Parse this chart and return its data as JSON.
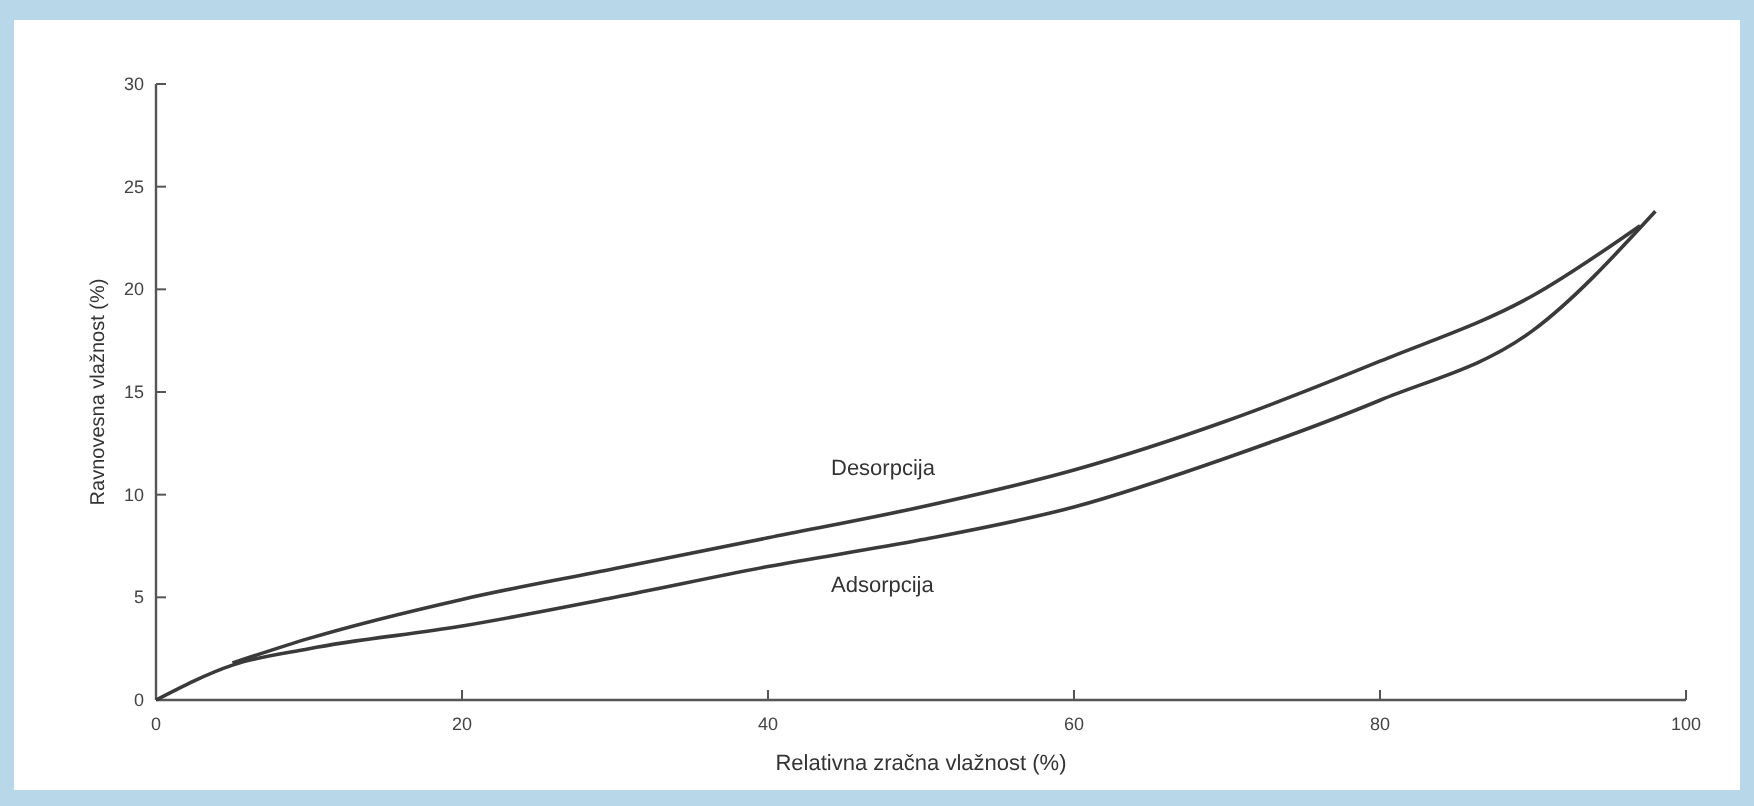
{
  "chart_data": {
    "type": "line",
    "xlabel": "Relativna zračna vlažnost (%)",
    "ylabel": "Ravnovesna vlažnost (%)",
    "xlim": [
      0,
      100
    ],
    "ylim": [
      0,
      30
    ],
    "xticks": [
      0,
      20,
      40,
      60,
      80,
      100
    ],
    "yticks": [
      0,
      5,
      10,
      15,
      20,
      25,
      30
    ],
    "grid": false,
    "marker": "none",
    "line_style": "solid",
    "series": [
      {
        "name": "Desorpcija",
        "color": "#3a3a3a",
        "x": [
          5,
          10,
          20,
          30,
          40,
          50,
          60,
          70,
          80,
          90,
          97
        ],
        "values": [
          1.8,
          3.0,
          4.9,
          6.4,
          7.9,
          9.4,
          11.2,
          13.6,
          16.5,
          19.7,
          23.1
        ]
      },
      {
        "name": "Adsorpcija",
        "color": "#3a3a3a",
        "x": [
          0,
          5,
          10,
          20,
          30,
          40,
          50,
          60,
          70,
          80,
          90,
          98
        ],
        "values": [
          0,
          1.7,
          2.5,
          3.6,
          5.0,
          6.5,
          7.8,
          9.4,
          11.8,
          14.6,
          18.0,
          23.8
        ]
      }
    ]
  }
}
